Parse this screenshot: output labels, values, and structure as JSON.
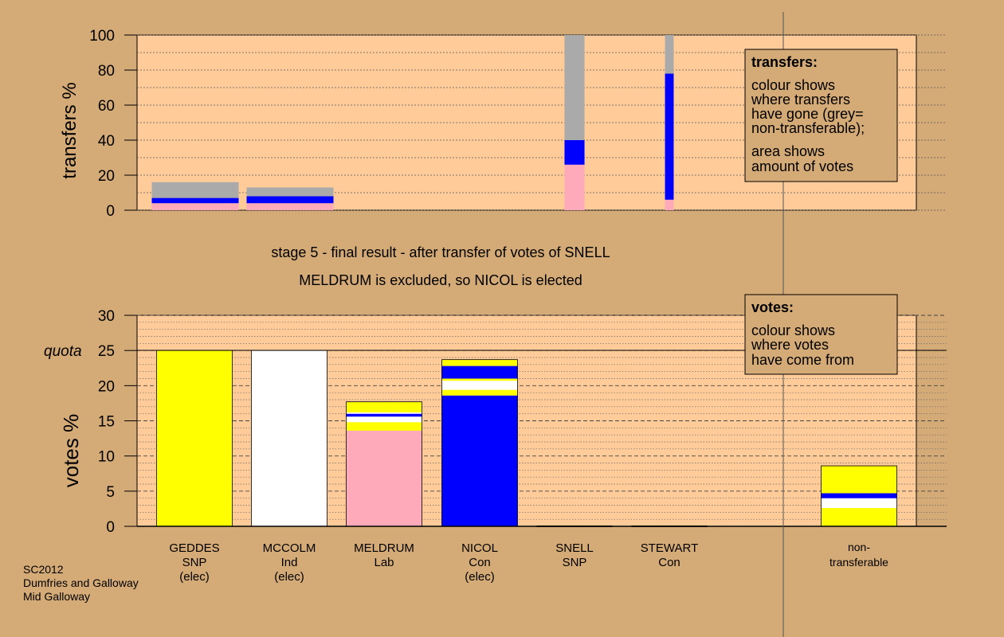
{
  "colors": {
    "background": "#d4aa77",
    "plot_area": "#ffcc99",
    "SNP": "#ffff00",
    "Ind": "#ffffff",
    "Lab": "#ffaabb",
    "Con": "#0000ff",
    "non_transferable": "#aaaaaa"
  },
  "caption": {
    "line1": "stage 5 - final result - after transfer of votes of SNELL",
    "line2": "MELDRUM is excluded, so NICOL is elected"
  },
  "footer": [
    "SC2012",
    "Dumfries and Galloway",
    "Mid Galloway"
  ],
  "candidates": [
    {
      "name": "GEDDES",
      "party": "SNP",
      "status": "(elec)"
    },
    {
      "name": "MCCOLM",
      "party": "Ind",
      "status": "(elec)"
    },
    {
      "name": "MELDRUM",
      "party": "Lab",
      "status": ""
    },
    {
      "name": "NICOL",
      "party": "Con",
      "status": "(elec)"
    },
    {
      "name": "SNELL",
      "party": "SNP",
      "status": ""
    },
    {
      "name": "STEWART",
      "party": "Con",
      "status": ""
    }
  ],
  "nontransferable_label": [
    "non-",
    "transferable"
  ],
  "legends": {
    "transfers": {
      "title": "transfers:",
      "lines": [
        "colour shows",
        "where transfers",
        "have gone (grey=",
        "non-transferable);"
      ],
      "lines2": [
        "area shows",
        "amount of votes"
      ]
    },
    "votes": {
      "title": "votes:",
      "lines": [
        "colour shows",
        "where votes",
        "have come from"
      ]
    }
  },
  "chart_data": [
    {
      "type": "bar",
      "ylabel": "transfers %",
      "ylim": [
        0,
        100
      ],
      "yticks": [
        0,
        20,
        40,
        60,
        80,
        100
      ],
      "grid": "dotted every 10",
      "note": "each column's width is proportional to the number of votes transferred",
      "columns": [
        {
          "candidate": "GEDDES",
          "relative_width": 1.0,
          "segments": [
            {
              "party": "Lab",
              "from": 0,
              "to": 4
            },
            {
              "party": "Con",
              "from": 4,
              "to": 7
            },
            {
              "party": "non_transferable",
              "from": 7,
              "to": 16
            }
          ]
        },
        {
          "candidate": "MCCOLM",
          "relative_width": 1.0,
          "segments": [
            {
              "party": "Lab",
              "from": 0,
              "to": 4
            },
            {
              "party": "Con",
              "from": 4,
              "to": 8
            },
            {
              "party": "non_transferable",
              "from": 8,
              "to": 13
            }
          ]
        },
        {
          "candidate": "SNELL",
          "relative_width": 0.23,
          "segments": [
            {
              "party": "Lab",
              "from": 0,
              "to": 26
            },
            {
              "party": "Con",
              "from": 26,
              "to": 40
            },
            {
              "party": "non_transferable",
              "from": 40,
              "to": 100
            }
          ]
        },
        {
          "candidate": "STEWART",
          "relative_width": 0.1,
          "segments": [
            {
              "party": "Lab",
              "from": 0,
              "to": 6
            },
            {
              "party": "Con",
              "from": 6,
              "to": 78
            },
            {
              "party": "non_transferable",
              "from": 78,
              "to": 100
            }
          ]
        }
      ]
    },
    {
      "type": "bar",
      "ylabel": "votes %",
      "ylim": [
        0,
        30
      ],
      "yticks": [
        0,
        5,
        10,
        15,
        20,
        25,
        30
      ],
      "quota": 25,
      "quota_label": "quota",
      "grid": "dotted every 1, dashed every 5",
      "bars": [
        {
          "candidate": "GEDDES",
          "segments": [
            {
              "party": "SNP",
              "from": 0,
              "to": 25
            }
          ]
        },
        {
          "candidate": "MCCOLM",
          "segments": [
            {
              "party": "Ind",
              "from": 0,
              "to": 25
            }
          ]
        },
        {
          "candidate": "MELDRUM",
          "segments": [
            {
              "party": "Lab",
              "from": 0,
              "to": 13.6
            },
            {
              "party": "SNP",
              "from": 13.6,
              "to": 14.8
            },
            {
              "party": "Ind",
              "from": 14.8,
              "to": 15.6
            },
            {
              "party": "Con",
              "from": 15.6,
              "to": 16.0
            },
            {
              "party": "Ind",
              "from": 16.0,
              "to": 16.2
            },
            {
              "party": "SNP",
              "from": 16.2,
              "to": 17.7
            }
          ]
        },
        {
          "candidate": "NICOL",
          "segments": [
            {
              "party": "Con",
              "from": 0,
              "to": 18.6
            },
            {
              "party": "SNP",
              "from": 18.6,
              "to": 19.4
            },
            {
              "party": "Ind",
              "from": 19.4,
              "to": 20.7
            },
            {
              "party": "SNP",
              "from": 20.7,
              "to": 21.0
            },
            {
              "party": "Con",
              "from": 21.0,
              "to": 22.8
            },
            {
              "party": "SNP",
              "from": 22.8,
              "to": 23.7
            }
          ]
        },
        {
          "candidate": "SNELL",
          "segments": []
        },
        {
          "candidate": "STEWART",
          "segments": []
        },
        {
          "candidate": "non-transferable",
          "segments": [
            {
              "party": "SNP",
              "from": 0,
              "to": 2.6
            },
            {
              "party": "Ind",
              "from": 2.6,
              "to": 4.0
            },
            {
              "party": "Con",
              "from": 4.0,
              "to": 4.7
            },
            {
              "party": "SNP",
              "from": 4.7,
              "to": 8.6
            }
          ]
        }
      ]
    }
  ]
}
